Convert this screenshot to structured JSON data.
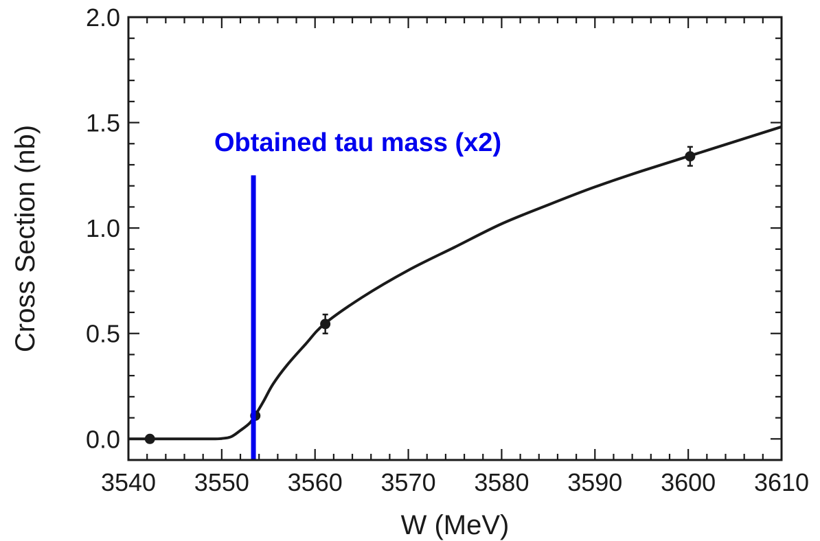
{
  "chart_data": {
    "type": "scatter",
    "title": "",
    "xlabel": "W (MeV)",
    "ylabel": "Cross Section (nb)",
    "xlim": [
      3540,
      3610
    ],
    "ylim": [
      -0.1,
      2.0
    ],
    "x_ticks": [
      3540,
      3550,
      3560,
      3570,
      3580,
      3590,
      3600,
      3610
    ],
    "x_tick_labels": [
      "3540",
      "3550",
      "3560",
      "3570",
      "3580",
      "3590",
      "3600",
      "3610"
    ],
    "y_ticks": [
      0.0,
      0.5,
      1.0,
      1.5,
      2.0
    ],
    "y_tick_labels": [
      "0.0",
      "0.5",
      "1.0",
      "1.5",
      "2.0"
    ],
    "x_minor_step": 2,
    "y_minor_step": 0.1,
    "grid": false,
    "points": [
      {
        "x": 3542.3,
        "y": 0.0,
        "err": 0.0
      },
      {
        "x": 3553.6,
        "y": 0.11,
        "err": 0.0
      },
      {
        "x": 3561.1,
        "y": 0.545,
        "err": 0.045
      },
      {
        "x": 3600.2,
        "y": 1.34,
        "err": 0.045
      }
    ],
    "fit_curve": {
      "x": [
        3540,
        3545,
        3549,
        3550,
        3551,
        3552,
        3553,
        3553.7,
        3554.5,
        3555.5,
        3557,
        3559,
        3561,
        3565,
        3570,
        3575,
        3580,
        3585,
        3590,
        3595,
        3600,
        3605,
        3610
      ],
      "y": [
        0.0,
        0.0,
        0.0,
        0.002,
        0.01,
        0.04,
        0.075,
        0.12,
        0.18,
        0.26,
        0.35,
        0.45,
        0.545,
        0.67,
        0.8,
        0.91,
        1.02,
        1.11,
        1.195,
        1.27,
        1.34,
        1.41,
        1.48
      ]
    },
    "vertical_marker": {
      "x": 3553.4,
      "y_top": 1.25,
      "color": "#0000ee"
    },
    "annotation": {
      "text": "Obtained tau mass (x2)",
      "x": 3553.4,
      "y": 1.41,
      "color": "#0000ee"
    }
  }
}
